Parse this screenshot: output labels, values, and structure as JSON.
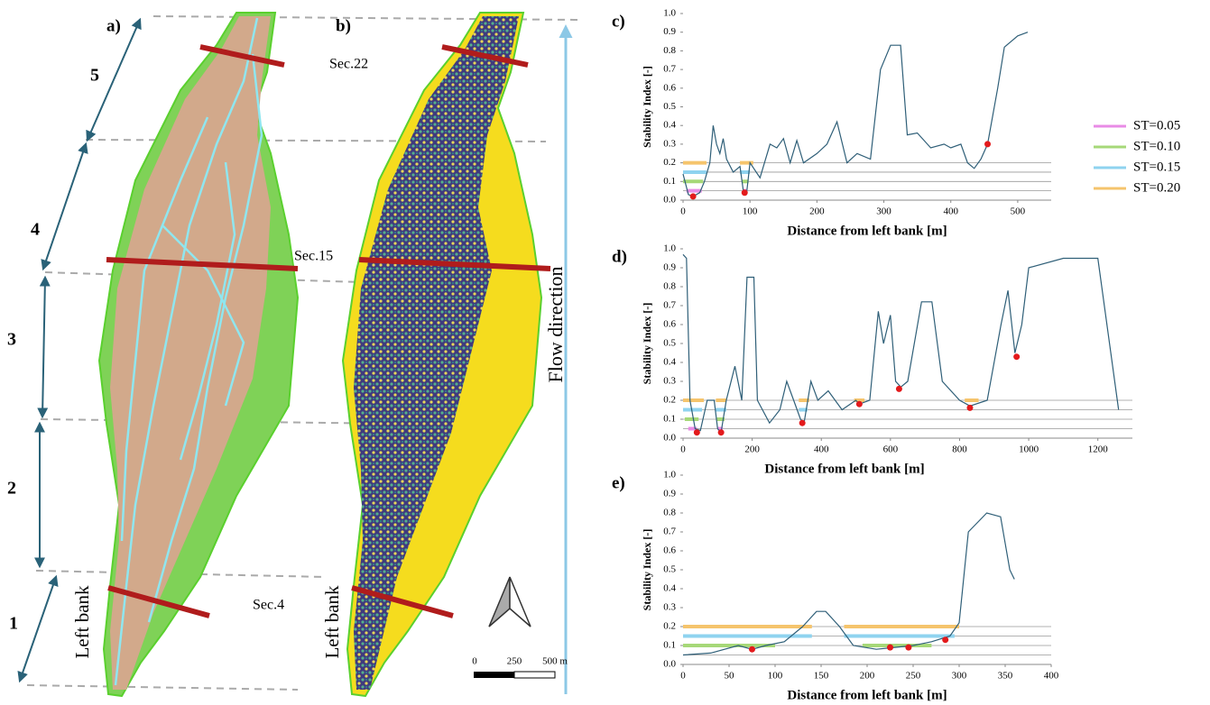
{
  "maps": {
    "panels": [
      "a)",
      "b)"
    ],
    "sections": [
      "Sec.22",
      "Sec.15",
      "Sec.4"
    ],
    "reaches": [
      "1",
      "2",
      "3",
      "4",
      "5"
    ],
    "bank_labels": [
      "Left bank",
      "Left bank"
    ],
    "flow_label": "Flow direction",
    "scale_labels": [
      "0",
      "250",
      "500 m"
    ]
  },
  "thresholds": [
    {
      "name": "ST=0.05",
      "color": "#e88be6",
      "value": 0.05
    },
    {
      "name": "ST=0.10",
      "color": "#a6d878",
      "value": 0.1
    },
    {
      "name": "ST=0.15",
      "color": "#8fd3ef",
      "value": 0.15
    },
    {
      "name": "ST=0.20",
      "color": "#f5c46c",
      "value": 0.2
    }
  ],
  "chart_data": [
    {
      "type": "line",
      "panel": "c)",
      "ylabel": "Stability Index [-]",
      "xlabel": "Distance from left bank [m]",
      "xlim": [
        0,
        550
      ],
      "xticks": [
        0,
        100,
        200,
        300,
        400,
        500
      ],
      "ylim": [
        0,
        1
      ],
      "yticks": [
        {
          "value": 0,
          "label": "0.0"
        },
        0.1,
        0.2,
        0.3,
        0.4,
        0.5,
        0.6,
        0.7,
        0.8,
        0.9,
        {
          "value": 1,
          "label": "1.0"
        }
      ],
      "line": {
        "color": "#2f5f78",
        "x": [
          0,
          8,
          15,
          25,
          32,
          40,
          45,
          50,
          55,
          60,
          65,
          75,
          85,
          90,
          95,
          100,
          115,
          130,
          140,
          150,
          160,
          170,
          180,
          200,
          215,
          230,
          245,
          260,
          280,
          295,
          310,
          325,
          335,
          350,
          370,
          390,
          400,
          415,
          425,
          435,
          445,
          455,
          470,
          480,
          500,
          515
        ],
        "y": [
          0.14,
          0.03,
          0.02,
          0.04,
          0.1,
          0.2,
          0.4,
          0.3,
          0.25,
          0.33,
          0.22,
          0.15,
          0.18,
          0.05,
          0.04,
          0.2,
          0.12,
          0.3,
          0.28,
          0.33,
          0.2,
          0.32,
          0.2,
          0.25,
          0.3,
          0.42,
          0.2,
          0.25,
          0.22,
          0.7,
          0.83,
          0.83,
          0.35,
          0.36,
          0.28,
          0.3,
          0.28,
          0.3,
          0.2,
          0.17,
          0.22,
          0.3,
          0.6,
          0.82,
          0.88,
          0.9
        ]
      },
      "points": {
        "color": "#e31a1c",
        "x": [
          15,
          92,
          455
        ],
        "y": [
          0.02,
          0.04,
          0.3
        ]
      },
      "bands": [
        [
          [
            5,
            28
          ],
          [
            90,
            96
          ]
        ],
        [
          [
            0,
            30
          ],
          [
            88,
            98
          ]
        ],
        [
          [
            0,
            35
          ],
          [
            85,
            100
          ]
        ],
        [
          [
            0,
            35
          ],
          [
            85,
            105
          ]
        ]
      ]
    },
    {
      "type": "line",
      "panel": "d)",
      "ylabel": "Stability Index [-]",
      "xlabel": "Distance from left bank [m]",
      "xlim": [
        0,
        1300
      ],
      "xticks": [
        0,
        200,
        400,
        600,
        800,
        1000,
        1200
      ],
      "ylim": [
        0,
        1
      ],
      "yticks": [
        {
          "value": 0,
          "label": "0.0"
        },
        0.1,
        0.2,
        0.3,
        0.4,
        0.5,
        0.6,
        0.7,
        0.8,
        0.9,
        {
          "value": 1,
          "label": "1.0"
        }
      ],
      "line": {
        "color": "#2f5f78",
        "x": [
          0,
          10,
          20,
          35,
          50,
          70,
          90,
          100,
          110,
          125,
          150,
          170,
          185,
          205,
          215,
          250,
          280,
          300,
          320,
          340,
          350,
          370,
          390,
          420,
          460,
          500,
          510,
          540,
          565,
          580,
          600,
          615,
          630,
          650,
          690,
          720,
          750,
          800,
          830,
          880,
          920,
          940,
          960,
          980,
          1000,
          1100,
          1200,
          1260
        ],
        "y": [
          0.97,
          0.95,
          0.2,
          0.05,
          0.04,
          0.2,
          0.2,
          0.05,
          0.03,
          0.2,
          0.38,
          0.2,
          0.85,
          0.85,
          0.2,
          0.08,
          0.15,
          0.3,
          0.2,
          0.1,
          0.08,
          0.3,
          0.2,
          0.25,
          0.15,
          0.2,
          0.18,
          0.2,
          0.67,
          0.5,
          0.65,
          0.3,
          0.27,
          0.3,
          0.72,
          0.72,
          0.3,
          0.2,
          0.17,
          0.2,
          0.6,
          0.78,
          0.45,
          0.6,
          0.9,
          0.95,
          0.95,
          0.15
        ]
      },
      "points": {
        "color": "#e31a1c",
        "x": [
          40,
          110,
          345,
          510,
          625,
          830,
          965
        ],
        "y": [
          0.03,
          0.03,
          0.08,
          0.18,
          0.26,
          0.16,
          0.43
        ]
      },
      "bands": [
        [
          [
            15,
            40
          ],
          [
            100,
            115
          ]
        ],
        [
          [
            5,
            45
          ],
          [
            98,
            120
          ]
        ],
        [
          [
            0,
            55
          ],
          [
            95,
            125
          ],
          [
            335,
            360
          ]
        ],
        [
          [
            0,
            60
          ],
          [
            95,
            125
          ],
          [
            335,
            365
          ],
          [
            495,
            525
          ],
          [
            815,
            855
          ]
        ]
      ]
    },
    {
      "type": "line",
      "panel": "e)",
      "ylabel": "Stability Index [-]",
      "xlabel": "Distance from left bank [m]",
      "xlim": [
        0,
        400
      ],
      "xticks": [
        0,
        50,
        100,
        150,
        200,
        250,
        300,
        350,
        400
      ],
      "ylim": [
        0,
        1
      ],
      "yticks": [
        {
          "value": 0,
          "label": "0.0"
        },
        0.1,
        0.2,
        0.3,
        0.4,
        0.5,
        0.6,
        0.7,
        0.8,
        0.9,
        {
          "value": 1,
          "label": "1.0"
        }
      ],
      "line": {
        "color": "#2f5f78",
        "x": [
          0,
          30,
          60,
          75,
          90,
          110,
          130,
          145,
          155,
          170,
          185,
          210,
          230,
          250,
          270,
          290,
          300,
          310,
          330,
          345,
          355,
          360
        ],
        "y": [
          0.05,
          0.06,
          0.1,
          0.08,
          0.1,
          0.12,
          0.2,
          0.28,
          0.28,
          0.2,
          0.1,
          0.08,
          0.09,
          0.1,
          0.12,
          0.15,
          0.22,
          0.7,
          0.8,
          0.78,
          0.5,
          0.45
        ]
      },
      "points": {
        "color": "#e31a1c",
        "x": [
          75,
          225,
          245,
          285
        ],
        "y": [
          0.08,
          0.09,
          0.09,
          0.13
        ]
      },
      "bands": [
        [],
        [
          [
            0,
            100
          ],
          [
            195,
            270
          ]
        ],
        [
          [
            0,
            140
          ],
          [
            175,
            295
          ]
        ],
        [
          [
            0,
            140
          ],
          [
            175,
            300
          ]
        ]
      ]
    }
  ]
}
